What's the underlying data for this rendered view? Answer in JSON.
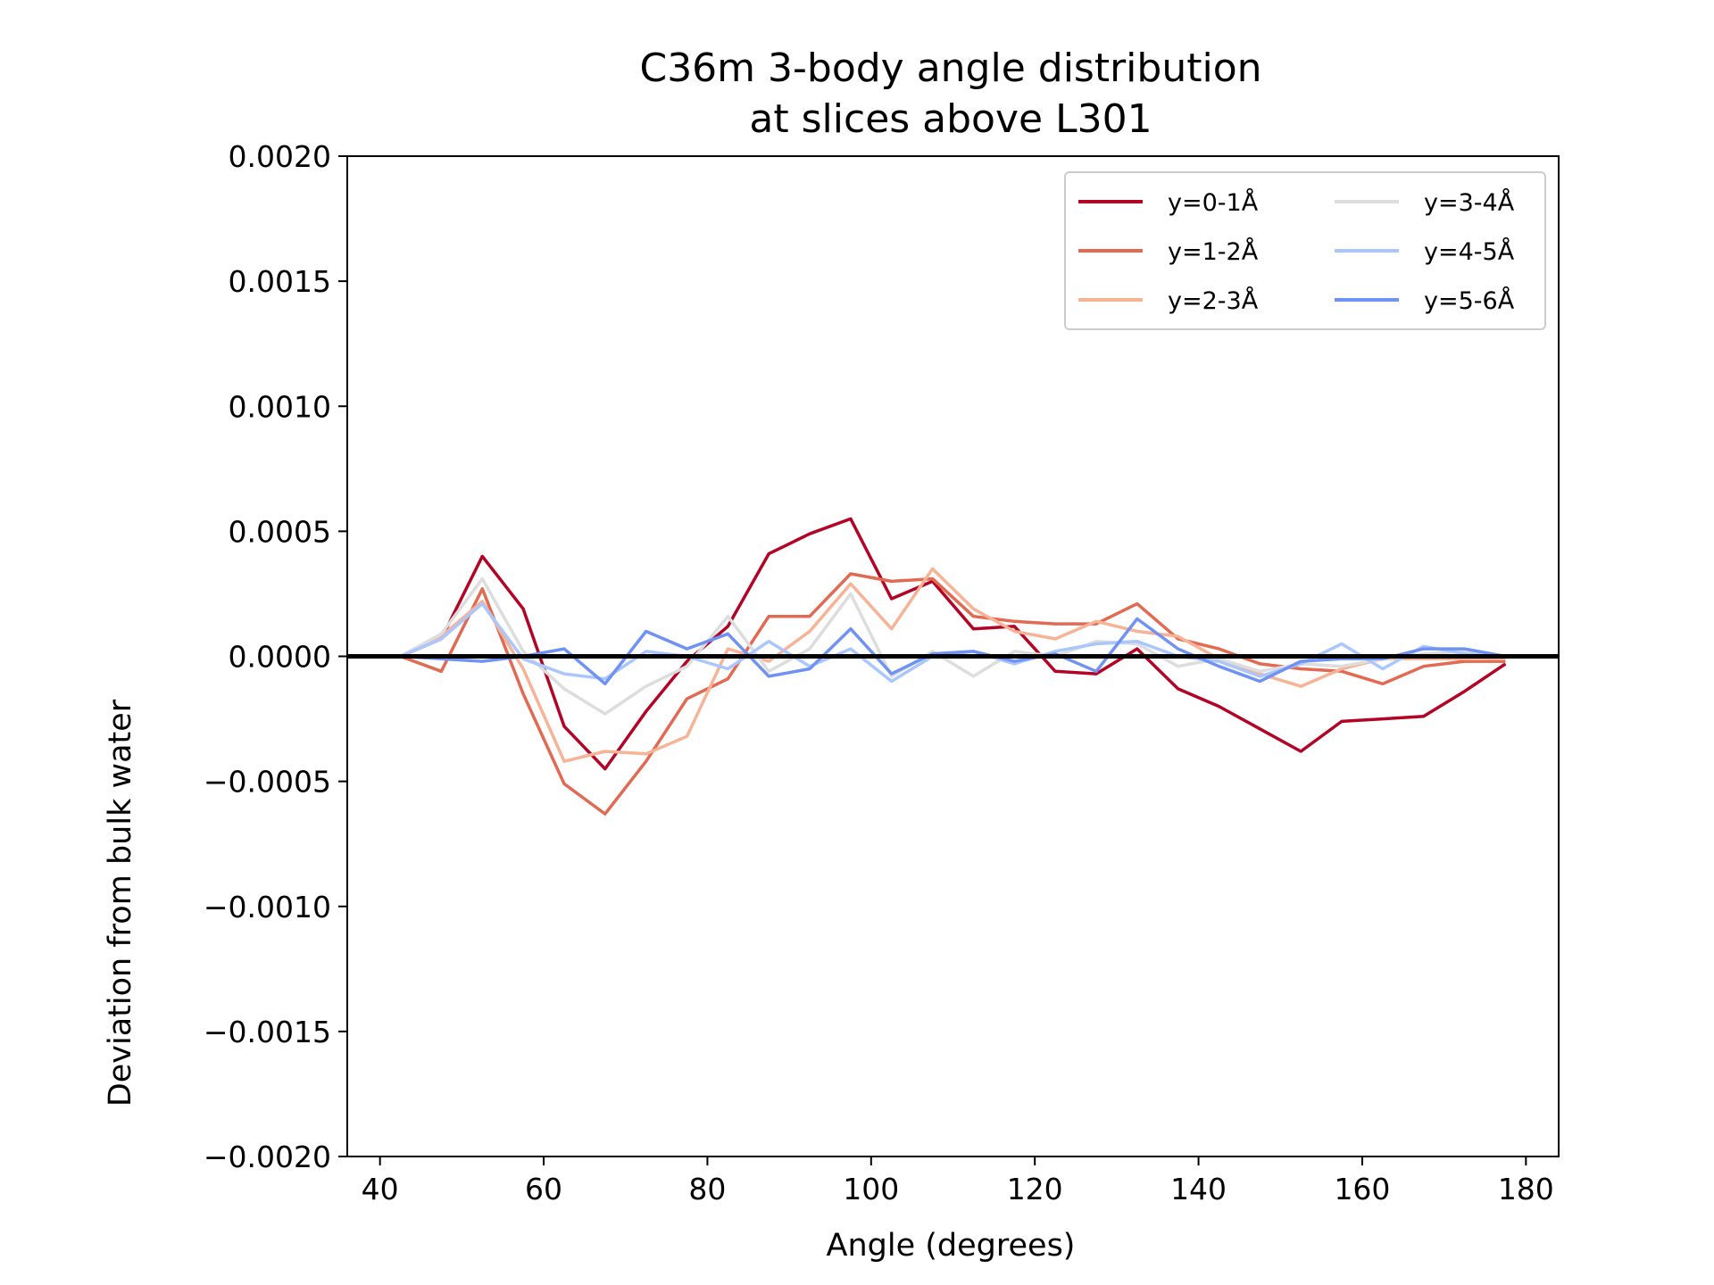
{
  "chart_data": {
    "type": "line",
    "title": [
      "C36m 3-body angle distribution",
      "at slices above L301"
    ],
    "xlabel": "Angle (degrees)",
    "ylabel": "Deviation from bulk water",
    "xlim": [
      36,
      184
    ],
    "ylim": [
      -0.002,
      0.002
    ],
    "xticks": [
      40,
      60,
      80,
      100,
      120,
      140,
      160,
      180
    ],
    "xtick_labels": [
      "40",
      "60",
      "80",
      "100",
      "120",
      "140",
      "160",
      "180"
    ],
    "yticks": [
      0.002,
      0.0015,
      0.001,
      0.0005,
      0.0,
      -0.0005,
      -0.001,
      -0.0015,
      -0.002
    ],
    "ytick_labels": [
      "0.0020",
      "0.0015",
      "0.0010",
      "0.0005",
      "0.0000",
      "−0.0005",
      "−0.0010",
      "−0.0015",
      "−0.0020"
    ],
    "reference_line": {
      "y": 0.0,
      "color": "#000000"
    },
    "legend_position": "top-right",
    "x": [
      42.5,
      47.5,
      52.5,
      57.5,
      62.5,
      67.5,
      72.5,
      77.5,
      82.5,
      87.5,
      92.5,
      97.5,
      102.5,
      107.5,
      112.5,
      117.5,
      122.5,
      127.5,
      132.5,
      137.5,
      142.5,
      147.5,
      152.5,
      157.5,
      162.5,
      167.5,
      172.5,
      177.5
    ],
    "series": [
      {
        "name": "y=0-1Å",
        "color": "#b40426",
        "values": [
          0.0,
          7e-05,
          0.0004,
          0.00019,
          -0.00028,
          -0.00045,
          -0.00022,
          -2e-05,
          0.00012,
          0.00041,
          0.00049,
          0.00055,
          0.00023,
          0.0003,
          0.00011,
          0.00012,
          -6e-05,
          -7e-05,
          3e-05,
          -0.00013,
          -0.0002,
          -0.00029,
          -0.00038,
          -0.00026,
          -0.00025,
          -0.00024,
          -0.00014,
          -3e-05
        ]
      },
      {
        "name": "y=1-2Å",
        "color": "#e26952",
        "values": [
          0.0,
          -6e-05,
          0.00027,
          -0.00015,
          -0.00051,
          -0.00063,
          -0.00042,
          -0.00017,
          -9e-05,
          0.00016,
          0.00016,
          0.00033,
          0.0003,
          0.00031,
          0.00016,
          0.00014,
          0.00013,
          0.00013,
          0.00021,
          7e-05,
          3e-05,
          -3e-05,
          -5e-05,
          -6e-05,
          -0.00011,
          -4e-05,
          -2e-05,
          -2e-05
        ]
      },
      {
        "name": "y=2-3Å",
        "color": "#f7b396",
        "values": [
          0.0,
          8e-05,
          0.00022,
          -5e-05,
          -0.00042,
          -0.00038,
          -0.00039,
          -0.00032,
          3e-05,
          -2e-05,
          0.0001,
          0.00029,
          0.00011,
          0.00035,
          0.00019,
          0.0001,
          7e-05,
          0.00014,
          0.0001,
          8e-05,
          -1e-05,
          -7e-05,
          -0.00012,
          -5e-05,
          -1e-05,
          -1e-05,
          -1e-05,
          -1e-05
        ]
      },
      {
        "name": "y=3-4Å",
        "color": "#dcdddd",
        "values": [
          0.0,
          9e-05,
          0.00031,
          2e-05,
          -0.00013,
          -0.00023,
          -0.00012,
          -4e-05,
          0.00016,
          -6e-05,
          3e-05,
          0.00025,
          -8e-05,
          2e-05,
          -8e-05,
          2e-05,
          0.0,
          6e-05,
          5e-05,
          -4e-05,
          -1e-05,
          -6e-05,
          -3e-05,
          -4e-05,
          -1e-05,
          1e-05,
          2e-05,
          0.0
        ]
      },
      {
        "name": "y=4-5Å",
        "color": "#aac7fd",
        "values": [
          0.0,
          7e-05,
          0.00021,
          -1e-05,
          -7e-05,
          -9e-05,
          2e-05,
          0.0,
          -5e-05,
          6e-05,
          -4e-05,
          3e-05,
          -0.0001,
          0.0,
          2e-05,
          -3e-05,
          2e-05,
          5e-05,
          6e-05,
          0.0,
          -2e-05,
          -8e-05,
          -3e-05,
          5e-05,
          -5e-05,
          4e-05,
          1e-05,
          0.0
        ]
      },
      {
        "name": "y=5-6Å",
        "color": "#6f92f3",
        "values": [
          0.0,
          -1e-05,
          -2e-05,
          0.0,
          3e-05,
          -0.00011,
          0.0001,
          3e-05,
          9e-05,
          -8e-05,
          -5e-05,
          0.00011,
          -7e-05,
          1e-05,
          2e-05,
          -2e-05,
          1e-05,
          -6e-05,
          0.00015,
          3e-05,
          -4e-05,
          -0.0001,
          -2e-05,
          -1e-05,
          -1e-05,
          3e-05,
          3e-05,
          0.0
        ]
      }
    ]
  }
}
